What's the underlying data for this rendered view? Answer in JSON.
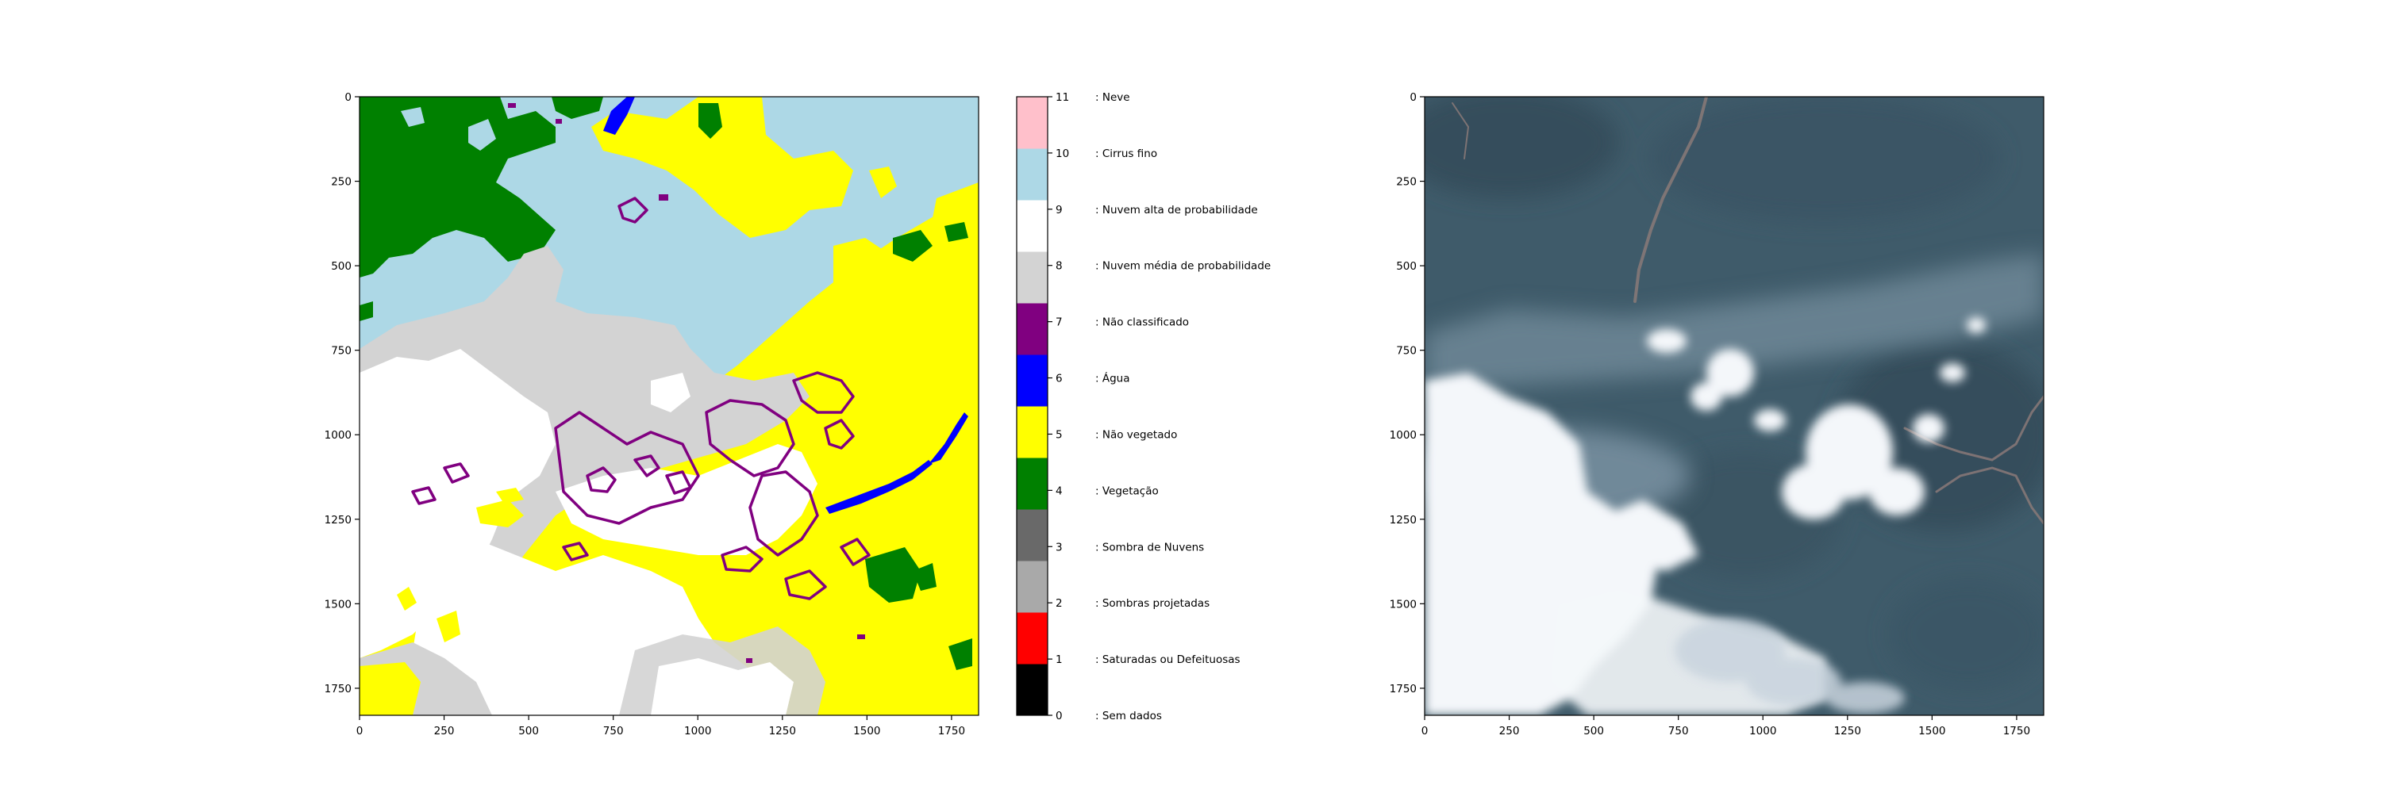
{
  "figure": {
    "left_panel": "classification-map",
    "right_panel": "rgb-image"
  },
  "chart_data": [
    {
      "type": "heatmap",
      "title": "",
      "xlabel": "",
      "ylabel": "",
      "xlim": [
        0,
        1830
      ],
      "ylim": [
        1830,
        0
      ],
      "xticks": [
        0,
        250,
        500,
        750,
        1000,
        1250,
        1500,
        1750
      ],
      "yticks": [
        0,
        250,
        500,
        750,
        1000,
        1250,
        1500,
        1750
      ],
      "colorbar": {
        "classes": [
          {
            "value": 0,
            "label": ": Sem dados",
            "color": "#000000"
          },
          {
            "value": 1,
            "label": ": Saturadas ou Defeituosas",
            "color": "#ff0000"
          },
          {
            "value": 2,
            "label": ": Sombras projetadas",
            "color": "#a9a9a9"
          },
          {
            "value": 3,
            "label": ": Sombra de Nuvens",
            "color": "#696969"
          },
          {
            "value": 4,
            "label": ": Vegetação",
            "color": "#008000"
          },
          {
            "value": 5,
            "label": ": Não vegetado",
            "color": "#ffff00"
          },
          {
            "value": 6,
            "label": ": Água",
            "color": "#0000ff"
          },
          {
            "value": 7,
            "label": ": Não classificado",
            "color": "#800080"
          },
          {
            "value": 8,
            "label": ": Nuvem média de probabilidade",
            "color": "#d3d3d3"
          },
          {
            "value": 9,
            "label": ": Nuvem alta de probabilidade",
            "color": "#ffffff"
          },
          {
            "value": 10,
            "label": ": Cirrus fino",
            "color": "#add8e6"
          },
          {
            "value": 11,
            "label": ": Neve",
            "color": "#ffc0cb"
          }
        ]
      },
      "map_colors": {
        "vegetation": "#008000",
        "non_vegetated": "#ffff00",
        "water": "#0000ff",
        "unclassified": "#800080",
        "cloud_medium": "#d3d3d3",
        "cloud_high": "#ffffff",
        "cirrus": "#add8e6"
      }
    },
    {
      "type": "heatmap",
      "title": "",
      "xlabel": "",
      "ylabel": "",
      "xlim": [
        0,
        1830
      ],
      "ylim": [
        1830,
        0
      ],
      "xticks": [
        0,
        250,
        500,
        750,
        1000,
        1250,
        1500,
        1750
      ],
      "yticks": [
        0,
        250,
        500,
        750,
        1000,
        1250,
        1500,
        1750
      ],
      "image_colors": {
        "forest": "#3f5b6a",
        "forest_dark": "#344e5c",
        "haze": "#7d95a5",
        "cloud": "#f4f7fa",
        "river": "#8a7a78"
      }
    }
  ]
}
